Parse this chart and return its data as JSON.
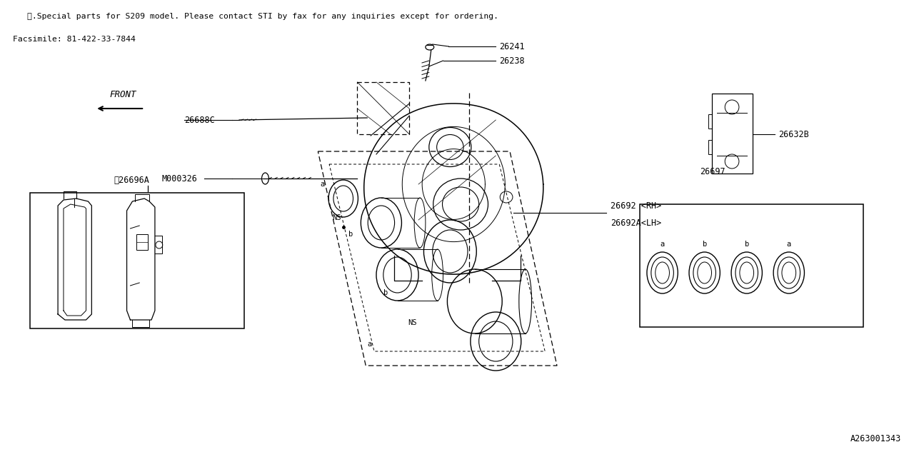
{
  "bg": "#ffffff",
  "lc": "#000000",
  "note1": "※.Special parts for S209 model. Please contact STI by fax for any inquiries except for ordering.",
  "note2": "Facsimile: 81-422-33-7844",
  "bottom_code": "A263001343",
  "fig_w": 12.8,
  "fig_h": 6.4,
  "dpi": 100
}
